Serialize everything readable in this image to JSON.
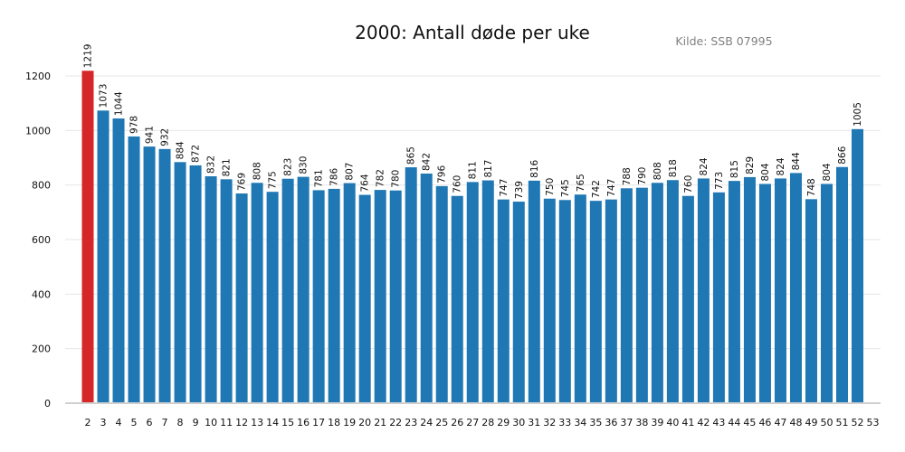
{
  "chart_data": {
    "type": "bar",
    "title": "2000: Antall døde per uke",
    "source": "Kilde: SSB 07995",
    "xlabel": "",
    "ylabel": "",
    "ylim": [
      0,
      1300
    ],
    "yticks": [
      0,
      200,
      400,
      600,
      800,
      1000,
      1200
    ],
    "grid": "horizontal",
    "colors": {
      "bar": "#1f77b4",
      "highlight": "#d62728"
    },
    "highlight_categories": [
      "2"
    ],
    "categories": [
      "2",
      "3",
      "4",
      "5",
      "6",
      "7",
      "8",
      "9",
      "10",
      "11",
      "12",
      "13",
      "14",
      "15",
      "16",
      "17",
      "18",
      "19",
      "20",
      "21",
      "22",
      "23",
      "24",
      "25",
      "26",
      "27",
      "28",
      "29",
      "30",
      "31",
      "32",
      "33",
      "34",
      "35",
      "36",
      "37",
      "38",
      "39",
      "40",
      "41",
      "42",
      "43",
      "44",
      "45",
      "46",
      "47",
      "48",
      "49",
      "50",
      "51",
      "52"
    ],
    "values": [
      1219,
      1073,
      1044,
      978,
      941,
      932,
      884,
      872,
      832,
      821,
      769,
      808,
      775,
      823,
      830,
      781,
      786,
      807,
      764,
      782,
      780,
      865,
      842,
      796,
      760,
      811,
      817,
      747,
      739,
      816,
      750,
      745,
      765,
      742,
      747,
      788,
      790,
      808,
      818,
      760,
      824,
      773,
      815,
      829,
      804,
      824,
      844,
      748,
      804,
      866,
      1005
    ],
    "extra_xtick": "53"
  }
}
